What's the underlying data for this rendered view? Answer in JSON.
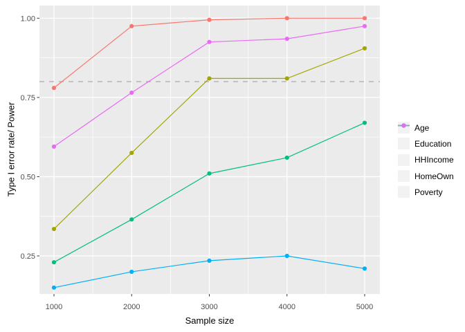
{
  "chart_data": {
    "type": "line",
    "title": "",
    "xlabel": "Sample size",
    "ylabel": "Type I error rate/ Power",
    "x": [
      1000,
      2000,
      3000,
      4000,
      5000
    ],
    "x_tick_labels": [
      "1000",
      "2000",
      "3000",
      "4000",
      "5000"
    ],
    "y_tick_values": [
      0.25,
      0.5,
      0.75,
      1.0
    ],
    "y_tick_labels": [
      "0.25",
      "0.50",
      "0.75",
      "1.00"
    ],
    "xlim": [
      813,
      5196
    ],
    "ylim": [
      0.13,
      1.04
    ],
    "grid": true,
    "legend_position": "right",
    "reference_line": {
      "y": 0.8,
      "style": "dashed",
      "color": "#A9A9A9"
    },
    "series": [
      {
        "name": "Age",
        "color": "#F8766D",
        "values": [
          0.78,
          0.975,
          0.995,
          1.0,
          1.0
        ]
      },
      {
        "name": "Education",
        "color": "#A3A500",
        "values": [
          0.335,
          0.575,
          0.81,
          0.81,
          0.905
        ]
      },
      {
        "name": "HHIncome",
        "color": "#00BF7D",
        "values": [
          0.23,
          0.365,
          0.51,
          0.56,
          0.67
        ]
      },
      {
        "name": "HomeOwn",
        "color": "#00B0F6",
        "values": [
          0.15,
          0.2,
          0.235,
          0.25,
          0.21
        ]
      },
      {
        "name": "Poverty",
        "color": "#E76BF3",
        "values": [
          0.595,
          0.765,
          0.925,
          0.935,
          0.975
        ]
      }
    ],
    "colors": {
      "panel_bg": "#EBEBEB",
      "grid": "#FFFFFF",
      "tick_text": "#4D4D4D",
      "tick_mark": "#333333",
      "legend_key_bg": "#F2F2F2"
    }
  }
}
